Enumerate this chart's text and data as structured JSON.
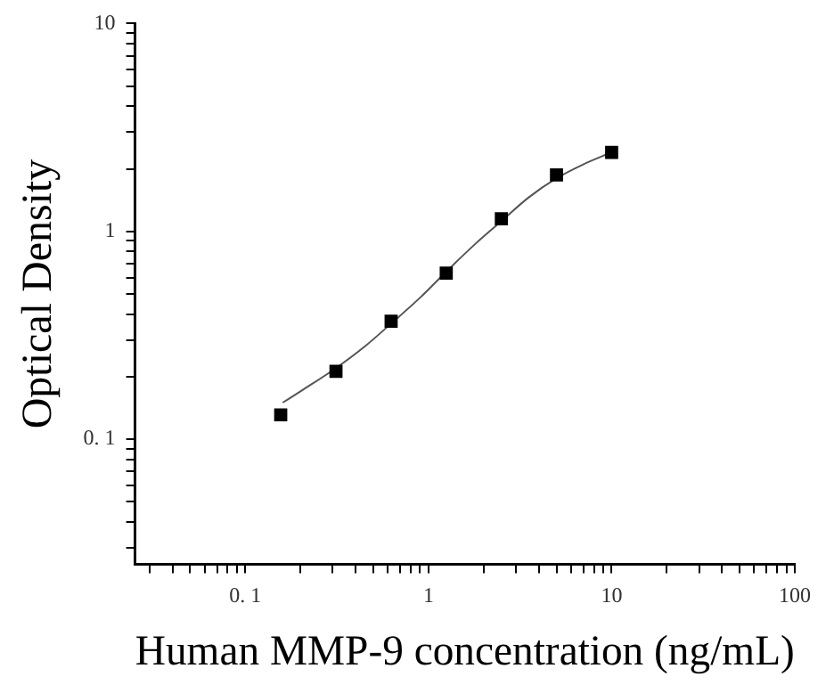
{
  "chart_data": {
    "type": "scatter",
    "xlabel": "Human MMP-9 concentration (ng/mL)",
    "ylabel": "Optical Density",
    "log": "xy",
    "grid": false,
    "legend": false,
    "xlim": [
      0.025,
      100
    ],
    "ylim": [
      0.025,
      10
    ],
    "xticks": [
      {
        "value": 0.03,
        "label": null
      },
      {
        "value": 0.04,
        "label": null
      },
      {
        "value": 0.05,
        "label": null
      },
      {
        "value": 0.06,
        "label": null
      },
      {
        "value": 0.07,
        "label": null
      },
      {
        "value": 0.08,
        "label": null
      },
      {
        "value": 0.09,
        "label": null
      },
      {
        "value": 0.1,
        "label": "0. 1"
      },
      {
        "value": 0.2,
        "label": null
      },
      {
        "value": 0.3,
        "label": null
      },
      {
        "value": 0.4,
        "label": null
      },
      {
        "value": 0.5,
        "label": null
      },
      {
        "value": 0.6,
        "label": null
      },
      {
        "value": 0.7,
        "label": null
      },
      {
        "value": 0.8,
        "label": null
      },
      {
        "value": 0.9,
        "label": null
      },
      1,
      {
        "value": 2,
        "label": null
      },
      {
        "value": 3,
        "label": null
      },
      {
        "value": 4,
        "label": null
      },
      {
        "value": 5,
        "label": null
      },
      {
        "value": 6,
        "label": null
      },
      {
        "value": 7,
        "label": null
      },
      {
        "value": 8,
        "label": null
      },
      {
        "value": 9,
        "label": null
      },
      10,
      {
        "value": 20,
        "label": null
      },
      {
        "value": 30,
        "label": null
      },
      {
        "value": 40,
        "label": null
      },
      {
        "value": 50,
        "label": null
      },
      {
        "value": 60,
        "label": null
      },
      {
        "value": 70,
        "label": null
      },
      {
        "value": 80,
        "label": null
      },
      {
        "value": 90,
        "label": null
      },
      100
    ],
    "yticks": [
      {
        "value": 0.03,
        "label": null
      },
      {
        "value": 0.04,
        "label": null
      },
      {
        "value": 0.05,
        "label": null
      },
      {
        "value": 0.06,
        "label": null
      },
      {
        "value": 0.07,
        "label": null
      },
      {
        "value": 0.08,
        "label": null
      },
      {
        "value": 0.09,
        "label": null
      },
      {
        "value": 0.1,
        "label": "0. 1"
      },
      {
        "value": 0.2,
        "label": null
      },
      {
        "value": 0.3,
        "label": null
      },
      {
        "value": 0.4,
        "label": null
      },
      {
        "value": 0.5,
        "label": null
      },
      {
        "value": 0.6,
        "label": null
      },
      {
        "value": 0.7,
        "label": null
      },
      {
        "value": 0.8,
        "label": null
      },
      {
        "value": 0.9,
        "label": null
      },
      1,
      {
        "value": 2,
        "label": null
      },
      {
        "value": 3,
        "label": null
      },
      {
        "value": 4,
        "label": null
      },
      {
        "value": 5,
        "label": null
      },
      {
        "value": 6,
        "label": null
      },
      {
        "value": 7,
        "label": null
      },
      {
        "value": 8,
        "label": null
      },
      {
        "value": 9,
        "label": null
      },
      10
    ],
    "series": [
      {
        "type": "scatter",
        "color": "#000000",
        "marker": "square",
        "x": [
          0.156,
          0.3125,
          0.625,
          1.25,
          2.5,
          5,
          10
        ],
        "values": [
          0.131,
          0.212,
          0.37,
          0.63,
          1.15,
          1.87,
          2.4
        ]
      },
      {
        "type": "line",
        "color": "#555555",
        "marker": "none",
        "line_style": "solid",
        "x": [
          0.16,
          0.2,
          0.3125,
          0.45,
          0.625,
          0.9,
          1.25,
          1.8,
          2.5,
          3.5,
          5,
          7,
          10
        ],
        "values": [
          0.15,
          0.17,
          0.22,
          0.28,
          0.36,
          0.48,
          0.64,
          0.87,
          1.12,
          1.45,
          1.8,
          2.1,
          2.4
        ]
      }
    ]
  }
}
